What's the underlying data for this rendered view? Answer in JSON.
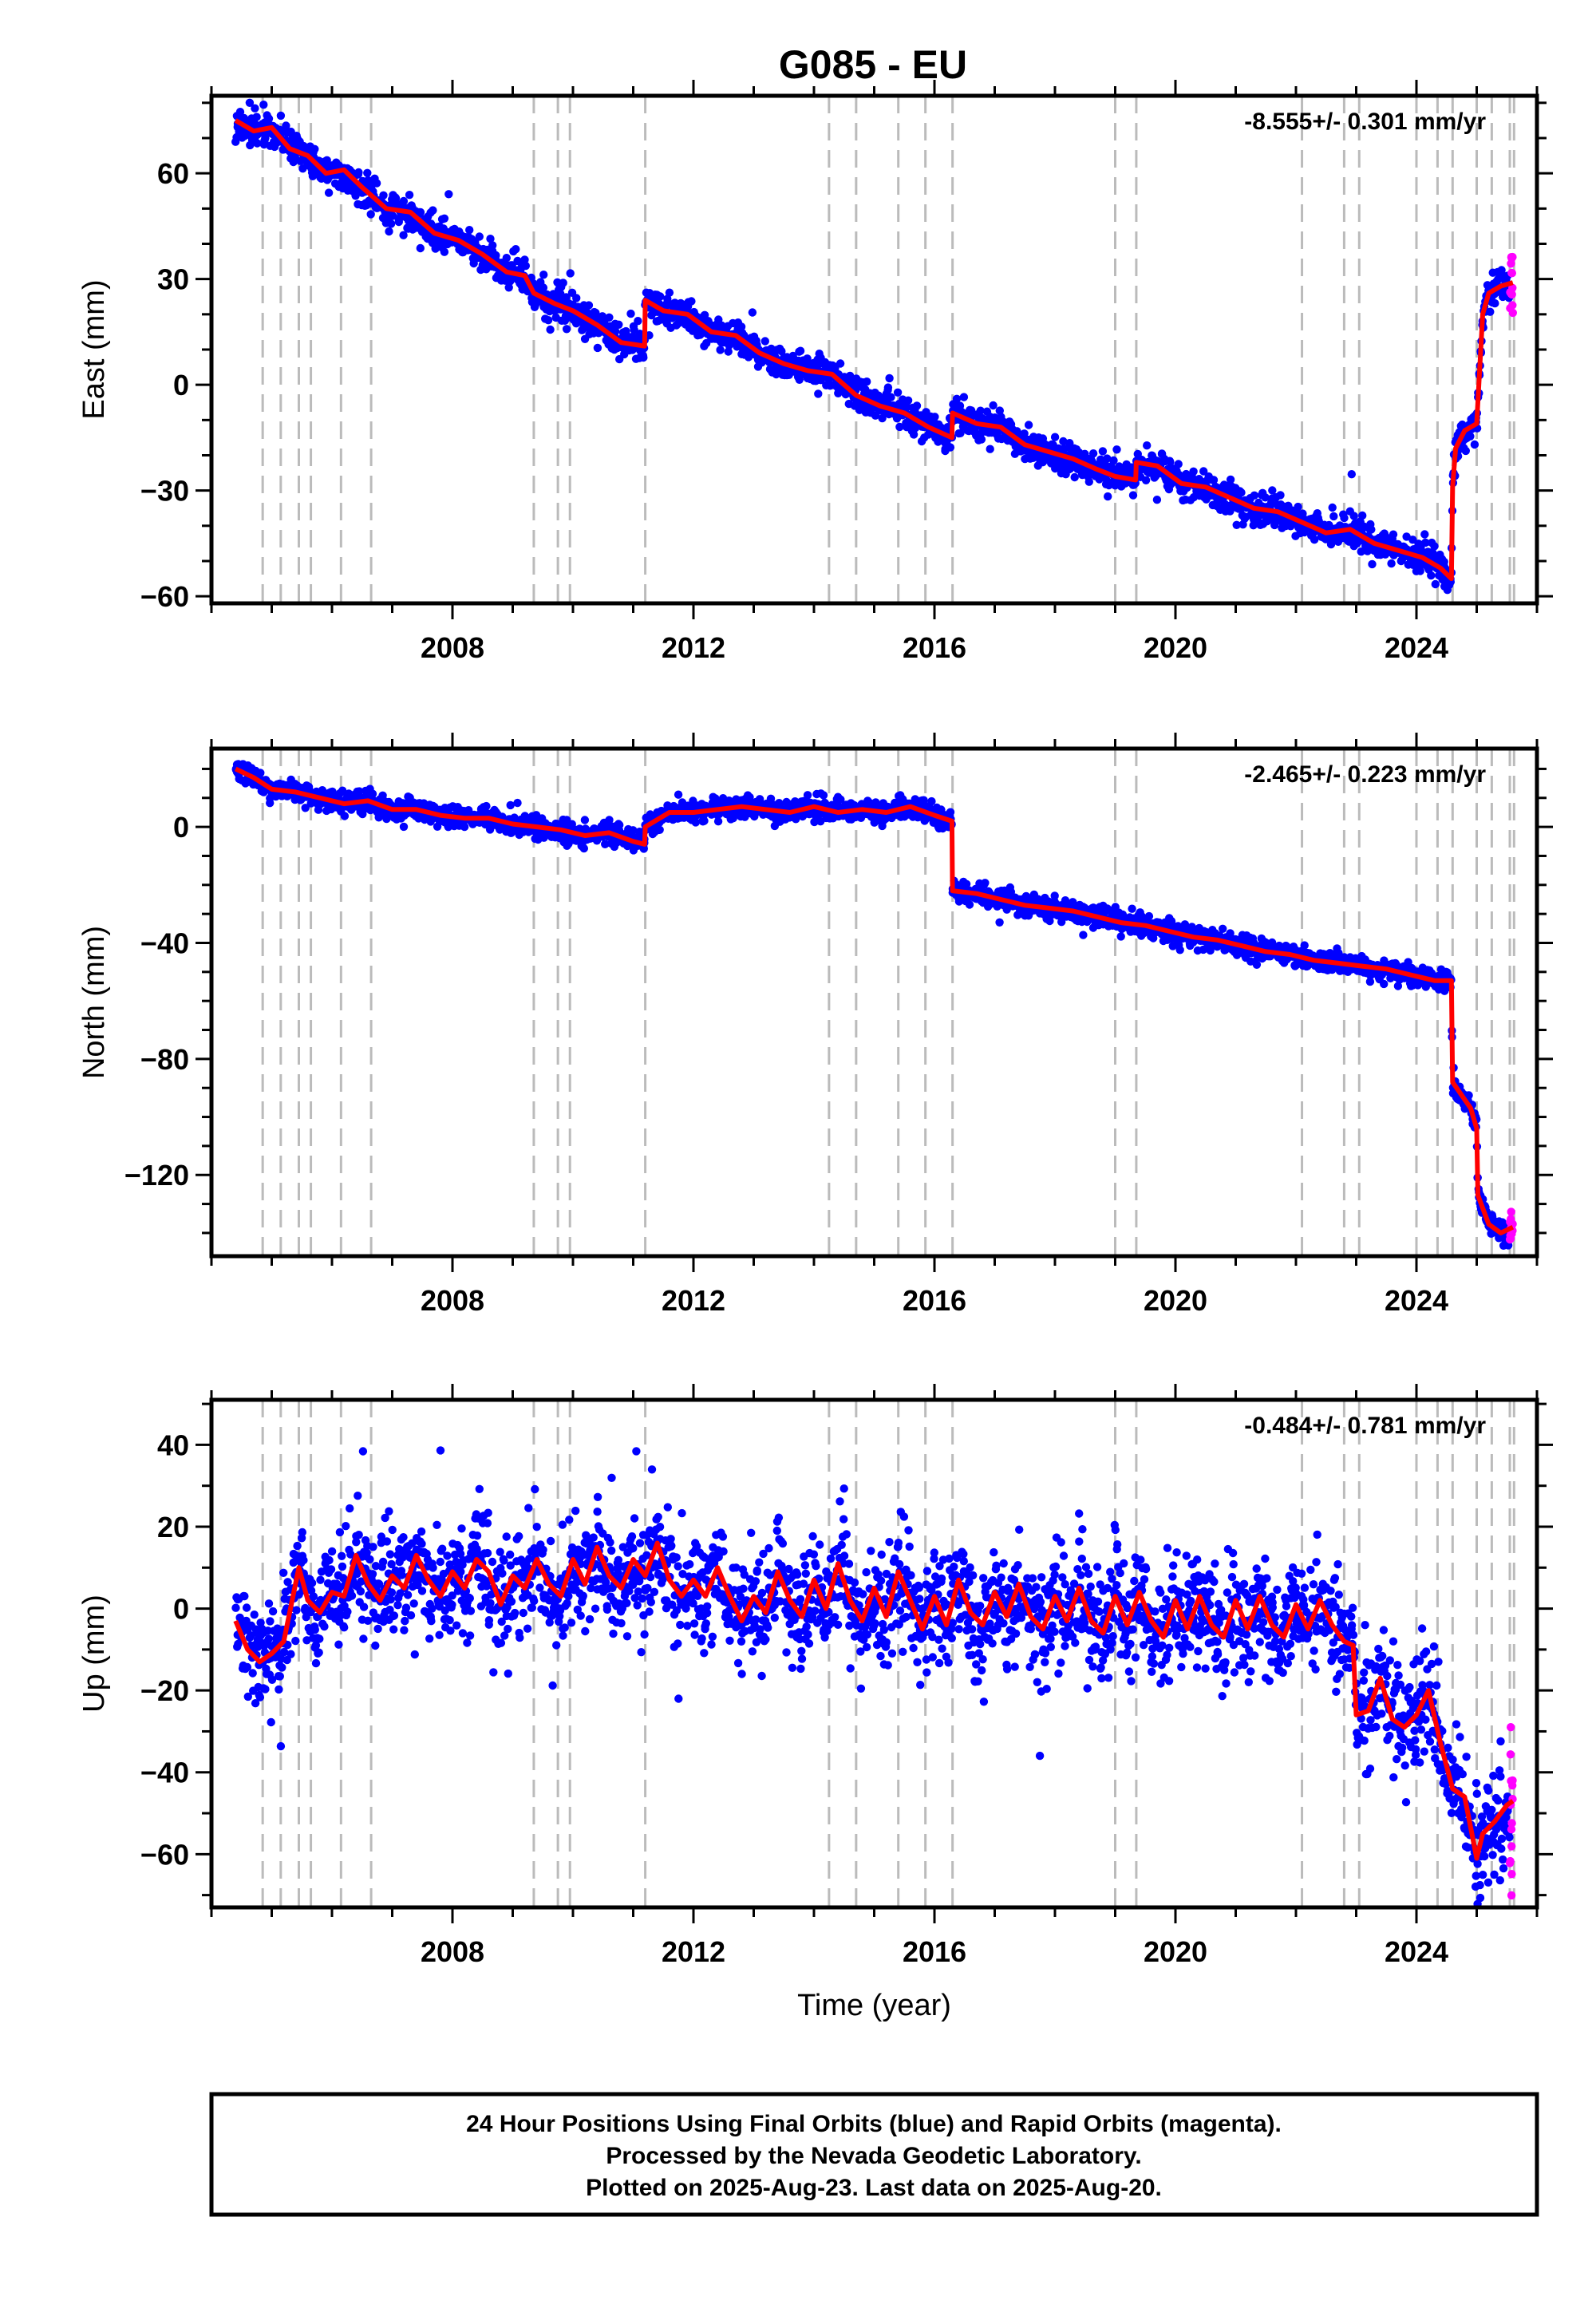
{
  "title": "G085 - EU",
  "colors": {
    "final_orbits": "#0000ff",
    "rapid_orbits": "#ff00ff",
    "model_fit": "#ff0000",
    "event_lines": "#bbbbbb"
  },
  "event_lines": [
    2004.85,
    2005.15,
    2005.45,
    2005.65,
    2006.15,
    2006.65,
    2009.35,
    2009.75,
    2009.95,
    2011.2,
    2014.25,
    2014.7,
    2015.4,
    2015.85,
    2016.3,
    2019.0,
    2019.35,
    2022.1,
    2022.8,
    2023.05,
    2024.0,
    2024.35,
    2024.6,
    2025.0,
    2025.25,
    2025.55,
    2025.62
  ],
  "chart_data": [
    {
      "type": "scatter",
      "panel": "east",
      "ylabel": "East (mm)",
      "xlabel": "",
      "rate_annotation": "-8.555+/- 0.301 mm/yr",
      "xlim": [
        2004.0,
        2026.0
      ],
      "ylim": [
        -62,
        82
      ],
      "xticks": [
        2008,
        2012,
        2016,
        2020,
        2024
      ],
      "yticks": [
        -60,
        -30,
        0,
        30,
        60
      ],
      "x_minor_tick_step": 1,
      "y_minor_tick_step": 10,
      "grid": false,
      "series": [
        {
          "role": "model_fit",
          "x": [
            2004.4,
            2004.7,
            2005.0,
            2005.3,
            2005.6,
            2005.9,
            2006.2,
            2006.5,
            2006.9,
            2007.3,
            2007.7,
            2008.1,
            2008.5,
            2008.9,
            2009.2,
            2009.35,
            2009.7,
            2010.0,
            2010.4,
            2010.8,
            2011.19,
            2011.2,
            2011.5,
            2011.9,
            2012.3,
            2012.7,
            2013.1,
            2013.5,
            2013.9,
            2014.3,
            2014.7,
            2015.1,
            2015.5,
            2015.9,
            2016.29,
            2016.3,
            2016.7,
            2017.1,
            2017.5,
            2017.9,
            2018.3,
            2018.7,
            2019.0,
            2019.34,
            2019.35,
            2019.7,
            2020.1,
            2020.5,
            2020.9,
            2021.3,
            2021.7,
            2022.1,
            2022.5,
            2022.9,
            2023.3,
            2023.7,
            2024.1,
            2024.4,
            2024.58,
            2024.6,
            2024.65,
            2024.8,
            2025.0,
            2025.1,
            2025.2,
            2025.4,
            2025.6
          ],
          "y": [
            75,
            72,
            73,
            67,
            65,
            60,
            61,
            56,
            50,
            49,
            43,
            41,
            37,
            32,
            31,
            26,
            23,
            21,
            17,
            12,
            11,
            24,
            21,
            20,
            15,
            14,
            9,
            6,
            4,
            3,
            -3,
            -6,
            -8,
            -12,
            -15,
            -8,
            -11,
            -12,
            -17,
            -19,
            -21,
            -24,
            -26,
            -27,
            -22,
            -23,
            -28,
            -29,
            -32,
            -35,
            -36,
            -39,
            -42,
            -41,
            -45,
            -47,
            -49,
            -52,
            -55,
            -29,
            -18,
            -13,
            -11,
            20,
            26,
            28,
            29
          ]
        }
      ]
    },
    {
      "type": "scatter",
      "panel": "north",
      "ylabel": "North (mm)",
      "xlabel": "",
      "rate_annotation": "-2.465+/- 0.223 mm/yr",
      "xlim": [
        2004.0,
        2026.0
      ],
      "ylim": [
        -148,
        27
      ],
      "xticks": [
        2008,
        2012,
        2016,
        2020,
        2024
      ],
      "yticks": [
        -120,
        -80,
        -40,
        0
      ],
      "x_minor_tick_step": 1,
      "y_minor_tick_step": 10,
      "grid": false,
      "series": [
        {
          "role": "model_fit",
          "x": [
            2004.4,
            2004.7,
            2005.0,
            2005.4,
            2005.8,
            2006.2,
            2006.6,
            2007.0,
            2007.4,
            2007.8,
            2008.2,
            2008.6,
            2009.0,
            2009.4,
            2009.8,
            2010.2,
            2010.6,
            2011.0,
            2011.19,
            2011.2,
            2011.6,
            2012.0,
            2012.4,
            2012.8,
            2013.2,
            2013.6,
            2014.0,
            2014.4,
            2014.8,
            2015.2,
            2015.6,
            2016.0,
            2016.29,
            2016.3,
            2016.7,
            2017.1,
            2017.5,
            2017.9,
            2018.3,
            2018.7,
            2019.1,
            2019.5,
            2019.9,
            2020.3,
            2020.7,
            2021.1,
            2021.5,
            2021.9,
            2022.3,
            2022.7,
            2023.1,
            2023.5,
            2023.9,
            2024.3,
            2024.58,
            2024.6,
            2024.9,
            2025.0,
            2025.02,
            2025.2,
            2025.4,
            2025.6
          ],
          "y": [
            20,
            17,
            13,
            12,
            10,
            8,
            9,
            6,
            6,
            4,
            3,
            3,
            1,
            0,
            -1,
            -3,
            -2,
            -5,
            -6,
            0,
            5,
            5,
            6,
            7,
            6,
            5,
            7,
            5,
            6,
            5,
            7,
            4,
            2,
            -22,
            -23,
            -25,
            -27,
            -28,
            -29,
            -31,
            -33,
            -34,
            -36,
            -38,
            -39,
            -41,
            -43,
            -44,
            -46,
            -47,
            -48,
            -49,
            -51,
            -53,
            -53,
            -88,
            -97,
            -104,
            -127,
            -137,
            -140,
            -138
          ]
        }
      ]
    },
    {
      "type": "scatter",
      "panel": "up",
      "ylabel": "Up (mm)",
      "xlabel": "Time (year)",
      "rate_annotation": "-0.484+/- 0.781 mm/yr",
      "xlim": [
        2004.0,
        2026.0
      ],
      "ylim": [
        -73,
        51
      ],
      "xticks": [
        2008,
        2012,
        2016,
        2020,
        2024
      ],
      "yticks": [
        -60,
        -40,
        -20,
        0,
        20,
        40
      ],
      "x_minor_tick_step": 1,
      "y_minor_tick_step": 10,
      "grid": false,
      "series": [
        {
          "role": "model_fit",
          "x": [
            2004.4,
            2004.6,
            2004.8,
            2005.0,
            2005.2,
            2005.45,
            2005.6,
            2005.8,
            2006.0,
            2006.2,
            2006.4,
            2006.6,
            2006.8,
            2007.0,
            2007.2,
            2007.4,
            2007.6,
            2007.8,
            2008.0,
            2008.2,
            2008.4,
            2008.6,
            2008.8,
            2009.0,
            2009.2,
            2009.4,
            2009.6,
            2009.8,
            2010.0,
            2010.2,
            2010.4,
            2010.6,
            2010.8,
            2011.0,
            2011.2,
            2011.4,
            2011.6,
            2011.8,
            2012.0,
            2012.2,
            2012.4,
            2012.6,
            2012.8,
            2013.0,
            2013.2,
            2013.4,
            2013.6,
            2013.8,
            2014.0,
            2014.2,
            2014.4,
            2014.6,
            2014.8,
            2015.0,
            2015.2,
            2015.4,
            2015.6,
            2015.8,
            2016.0,
            2016.2,
            2016.4,
            2016.6,
            2016.8,
            2017.0,
            2017.2,
            2017.4,
            2017.6,
            2017.8,
            2018.0,
            2018.2,
            2018.4,
            2018.6,
            2018.8,
            2019.0,
            2019.2,
            2019.4,
            2019.6,
            2019.8,
            2020.0,
            2020.2,
            2020.4,
            2020.6,
            2020.8,
            2021.0,
            2021.2,
            2021.4,
            2021.6,
            2021.8,
            2022.0,
            2022.2,
            2022.4,
            2022.6,
            2022.8,
            2022.95,
            2023.0,
            2023.2,
            2023.4,
            2023.6,
            2023.8,
            2024.0,
            2024.2,
            2024.4,
            2024.6,
            2024.8,
            2025.0,
            2025.1,
            2025.3,
            2025.5,
            2025.6
          ],
          "y": [
            -3,
            -10,
            -13,
            -11,
            -8,
            10,
            2,
            -1,
            4,
            3,
            13,
            6,
            2,
            8,
            5,
            13,
            7,
            3,
            9,
            5,
            12,
            9,
            1,
            8,
            5,
            12,
            6,
            3,
            12,
            6,
            15,
            8,
            5,
            12,
            8,
            16,
            7,
            3,
            7,
            3,
            10,
            3,
            -3,
            3,
            -1,
            9,
            2,
            -2,
            7,
            0,
            11,
            2,
            -3,
            5,
            -2,
            9,
            2,
            -5,
            3,
            -4,
            7,
            -1,
            -4,
            4,
            -2,
            6,
            -2,
            -5,
            3,
            -3,
            5,
            -3,
            -6,
            3,
            -4,
            4,
            -3,
            -7,
            2,
            -5,
            3,
            -4,
            -7,
            2,
            -5,
            3,
            -4,
            -7,
            1,
            -5,
            2,
            -4,
            -8,
            -9,
            -26,
            -25,
            -17,
            -27,
            -29,
            -26,
            -20,
            -33,
            -44,
            -46,
            -61,
            -55,
            -52,
            -48,
            -47
          ]
        }
      ]
    }
  ],
  "footer": {
    "line1": "24 Hour Positions Using Final Orbits (blue) and Rapid Orbits (magenta).",
    "line2": "Processed by the Nevada Geodetic Laboratory.",
    "line3": "Plotted on 2025-Aug-23. Last data on 2025-Aug-20."
  }
}
